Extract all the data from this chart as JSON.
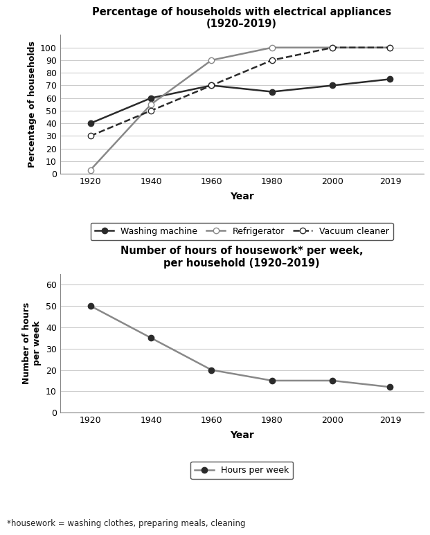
{
  "years": [
    1920,
    1940,
    1960,
    1980,
    2000,
    2019
  ],
  "washing_machine": [
    40,
    60,
    70,
    65,
    70,
    75
  ],
  "refrigerator": [
    3,
    55,
    90,
    100,
    100,
    100
  ],
  "vacuum_cleaner": [
    30,
    50,
    70,
    90,
    100,
    100
  ],
  "hours_per_week": [
    50,
    35,
    20,
    15,
    15,
    12
  ],
  "title1": "Percentage of households with electrical appliances\n(1920–2019)",
  "title2": "Number of hours of housework* per week,\nper household (1920–2019)",
  "xlabel": "Year",
  "ylabel1": "Percentage of households",
  "ylabel2": "Number of hours\nper week",
  "footnote": "*housework = washing clothes, preparing meals, cleaning",
  "legend1_labels": [
    "Washing machine",
    "Refrigerator",
    "Vacuum cleaner"
  ],
  "legend2_labels": [
    "Hours per week"
  ],
  "ylim1": [
    0,
    110
  ],
  "ylim2": [
    0,
    65
  ],
  "yticks1": [
    0,
    10,
    20,
    30,
    40,
    50,
    60,
    70,
    80,
    90,
    100
  ],
  "yticks2": [
    0,
    10,
    20,
    30,
    40,
    50,
    60
  ],
  "color_dark": "#2b2b2b",
  "color_gray": "#888888",
  "bg_color": "#ffffff",
  "xlim": [
    1910,
    2030
  ]
}
